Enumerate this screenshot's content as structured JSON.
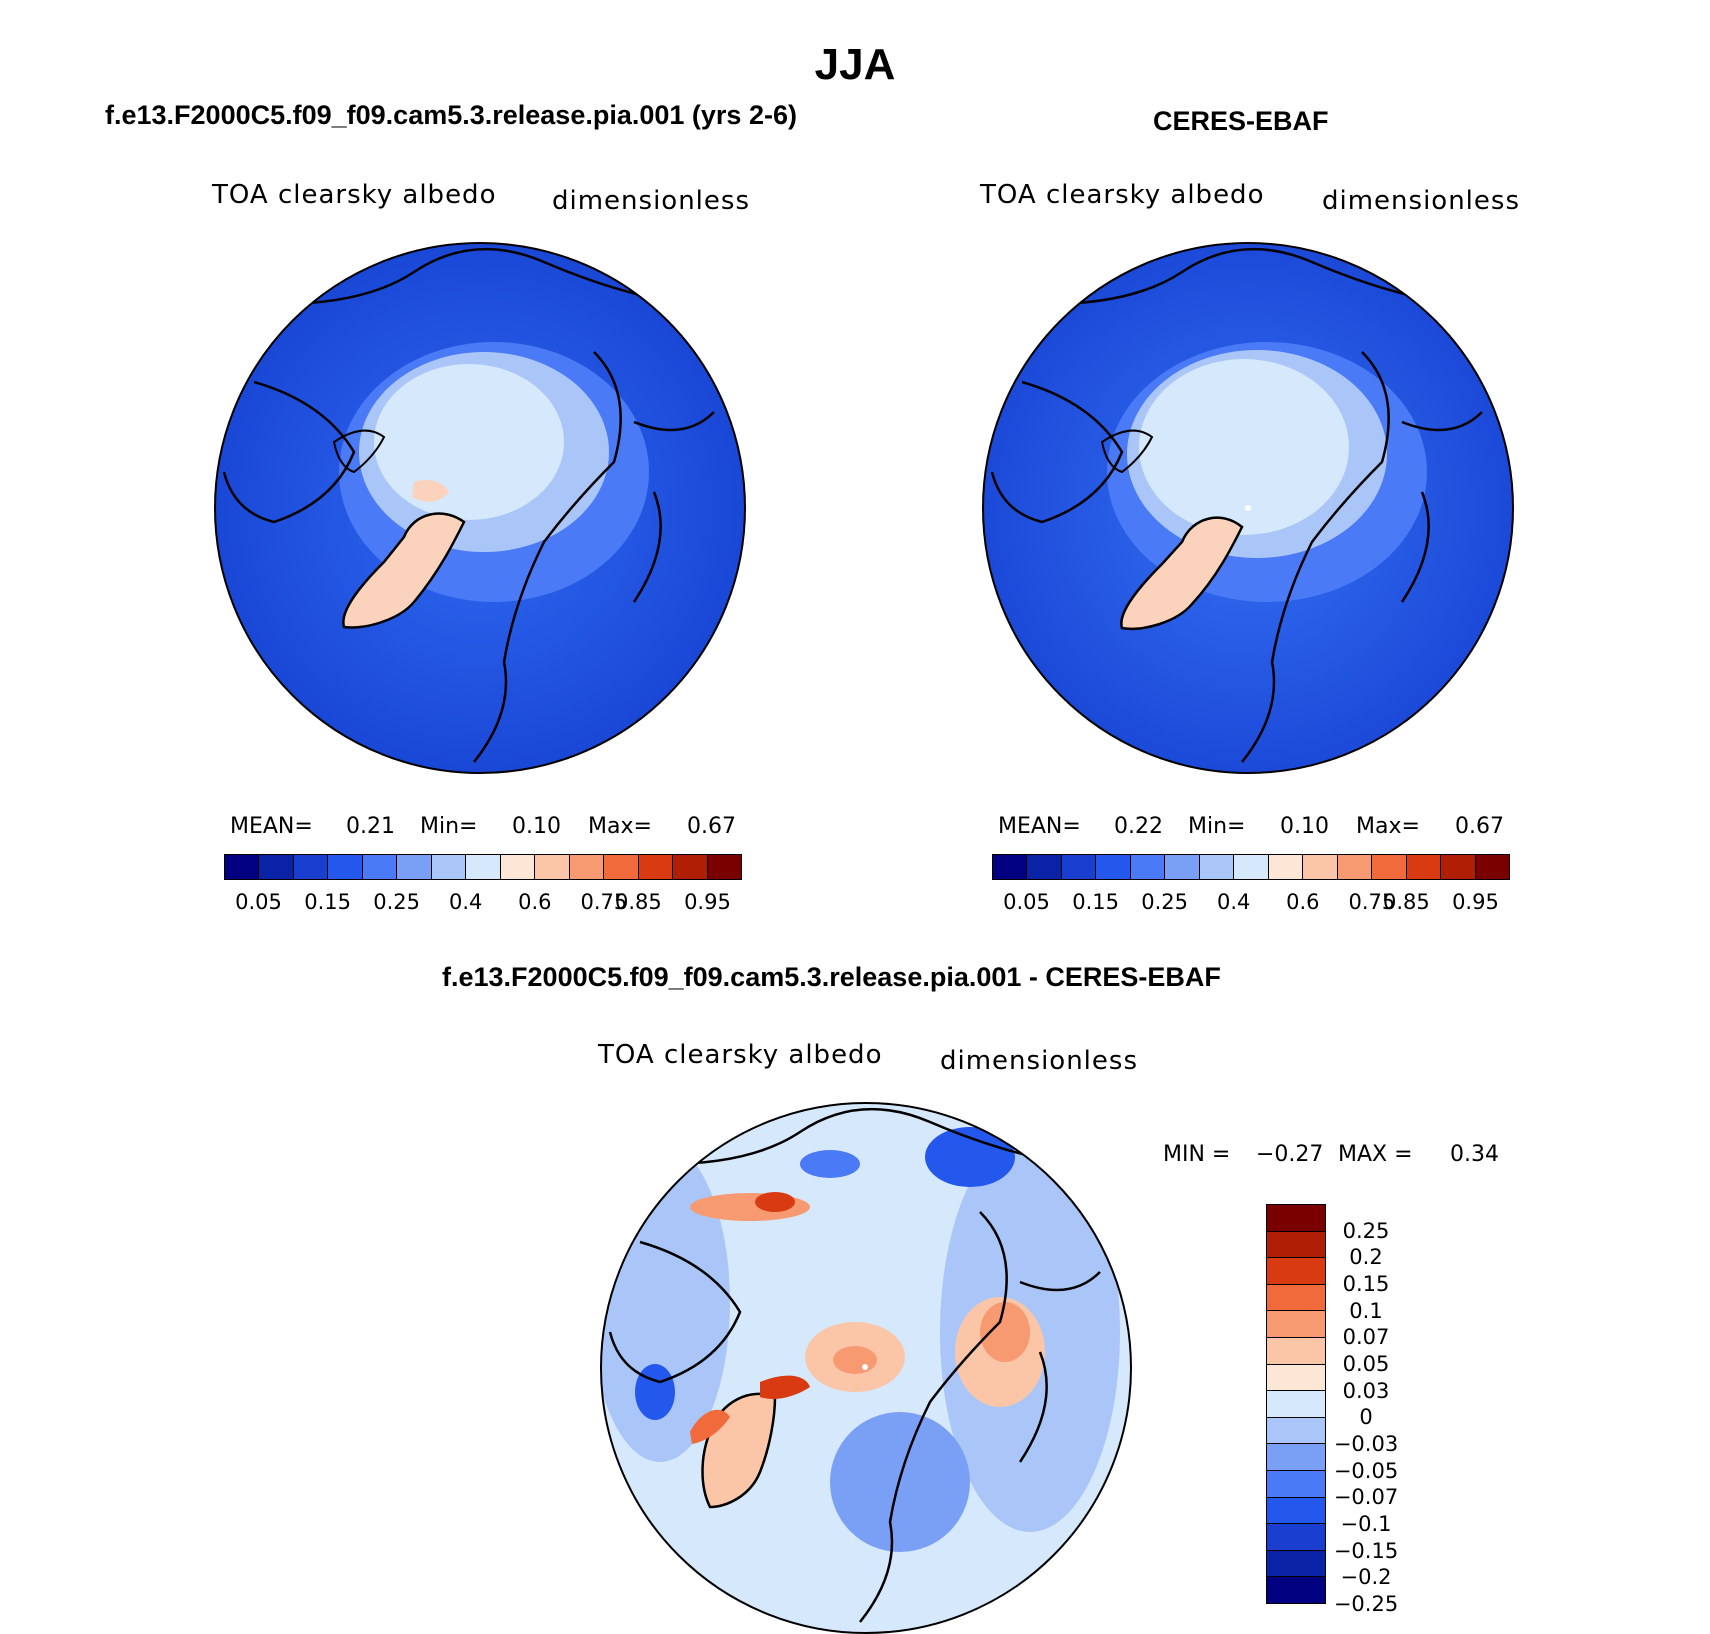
{
  "title": "JJA",
  "panels": [
    {
      "title": "f.e13.F2000C5.f09_f09.cam5.3.release.pia.001 (yrs 2-6)",
      "variable": "TOA clearsky albedo",
      "units": "dimensionless",
      "stats": {
        "mean_label": "MEAN=",
        "mean": "0.21",
        "min_label": "Min=",
        "min": "0.10",
        "max_label": "Max=",
        "max": "0.67"
      }
    },
    {
      "title": "CERES-EBAF",
      "variable": "TOA clearsky albedo",
      "units": "dimensionless",
      "stats": {
        "mean_label": "MEAN=",
        "mean": "0.22",
        "min_label": "Min=",
        "min": "0.10",
        "max_label": "Max=",
        "max": "0.67"
      }
    },
    {
      "title": "f.e13.F2000C5.f09_f09.cam5.3.release.pia.001 - CERES-EBAF",
      "variable": "TOA clearsky albedo",
      "units": "dimensionless",
      "stats": {
        "min_label": "MIN =",
        "min": "−0.27",
        "max_label": "MAX =",
        "max": "0.34"
      }
    }
  ],
  "colorbar_abs": {
    "colors": [
      "#000080",
      "#0a23a6",
      "#1a3fd0",
      "#2458ec",
      "#4a7af5",
      "#7aa0f6",
      "#aac6f8",
      "#d6e8fb",
      "#fce6d6",
      "#fbc6a8",
      "#f79a72",
      "#f06a3c",
      "#d83a12",
      "#b01e06",
      "#7a0000"
    ],
    "labels": [
      "0.05",
      "0.15",
      "0.25",
      "0.4",
      "0.6",
      "0.75",
      "0.85",
      "0.95"
    ]
  },
  "colorbar_diff": {
    "colors": [
      "#7a0000",
      "#b01e06",
      "#d83a12",
      "#f06a3c",
      "#f79a72",
      "#fbc6a8",
      "#fce6d6",
      "#d6e8fb",
      "#aac6f8",
      "#7aa0f6",
      "#4a7af5",
      "#2458ec",
      "#1a3fd0",
      "#0a23a6",
      "#000080"
    ],
    "labels": [
      "0.25",
      "0.2",
      "0.15",
      "0.1",
      "0.07",
      "0.05",
      "0.03",
      "0",
      "−0.03",
      "−0.05",
      "−0.07",
      "−0.1",
      "−0.15",
      "−0.2",
      "−0.25"
    ]
  },
  "map_colors": {
    "ocean_deep": "#1f4fe0",
    "ocean_mid": "#2a62ee",
    "ice_light": "#d6e8fb",
    "ice_mid": "#aac6f8",
    "greenland": "#fbd3bd",
    "diff_bg": "#d6e8fb",
    "diff_neg": "#7aa0f6",
    "diff_strong_neg": "#2458ec",
    "diff_pos": "#f79a72",
    "diff_strong_pos": "#d83a12"
  },
  "chart_data": {
    "type": "heatmap",
    "projection": "north polar stereographic",
    "season": "JJA",
    "maps": [
      {
        "name": "f.e13.F2000C5.f09_f09.cam5.3.release.pia.001 (yrs 2-6)",
        "mean": 0.21,
        "min": 0.1,
        "max": 0.67
      },
      {
        "name": "CERES-EBAF",
        "mean": 0.22,
        "min": 0.1,
        "max": 0.67
      },
      {
        "name": "f.e13.F2000C5.f09_f09.cam5.3.release.pia.001 - CERES-EBAF",
        "min": -0.27,
        "max": 0.34
      }
    ],
    "abs_levels": [
      0.05,
      0.1,
      0.15,
      0.2,
      0.25,
      0.3,
      0.4,
      0.5,
      0.6,
      0.7,
      0.75,
      0.8,
      0.85,
      0.9,
      0.95
    ],
    "diff_levels": [
      0.25,
      0.2,
      0.15,
      0.1,
      0.07,
      0.05,
      0.03,
      0,
      -0.03,
      -0.05,
      -0.07,
      -0.1,
      -0.15,
      -0.2,
      -0.25
    ]
  }
}
